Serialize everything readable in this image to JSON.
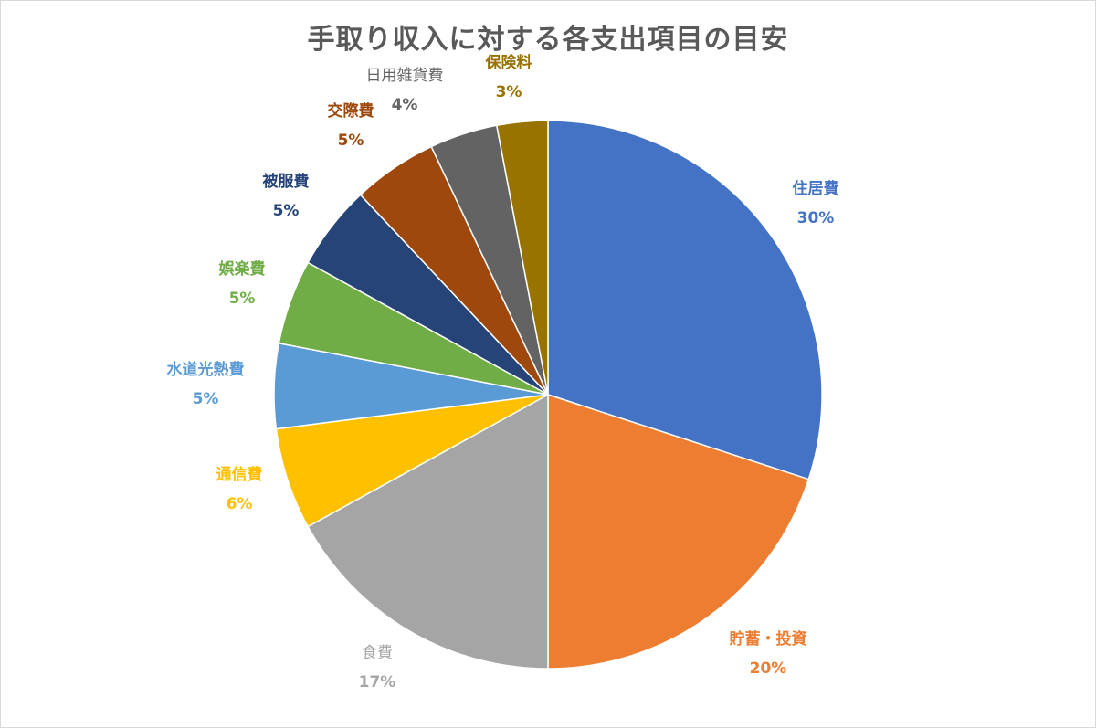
{
  "chart_data": {
    "type": "pie",
    "title": "手取り収入に対する各支出項目の目安",
    "slices": [
      {
        "label": "住居費",
        "value": 30,
        "display": "30%",
        "color": "#4472C4"
      },
      {
        "label": "貯蓄・投資",
        "value": 20,
        "display": "20%",
        "color": "#ED7D31"
      },
      {
        "label": "食費",
        "value": 17,
        "display": "17%",
        "color": "#A5A5A5"
      },
      {
        "label": "通信費",
        "value": 6,
        "display": "6%",
        "color": "#FFC000"
      },
      {
        "label": "水道光熱費",
        "value": 5,
        "display": "5%",
        "color": "#5B9BD5"
      },
      {
        "label": "娯楽費",
        "value": 5,
        "display": "5%",
        "color": "#70AD47"
      },
      {
        "label": "被服費",
        "value": 5,
        "display": "5%",
        "color": "#264478"
      },
      {
        "label": "交際費",
        "value": 5,
        "display": "5%",
        "color": "#9E480E"
      },
      {
        "label": "日用雑貨費",
        "value": 4,
        "display": "4%",
        "color": "#636363"
      },
      {
        "label": "保険料",
        "value": 3,
        "display": "3%",
        "color": "#997300"
      }
    ],
    "legend": "none",
    "data_labels": "outside"
  }
}
